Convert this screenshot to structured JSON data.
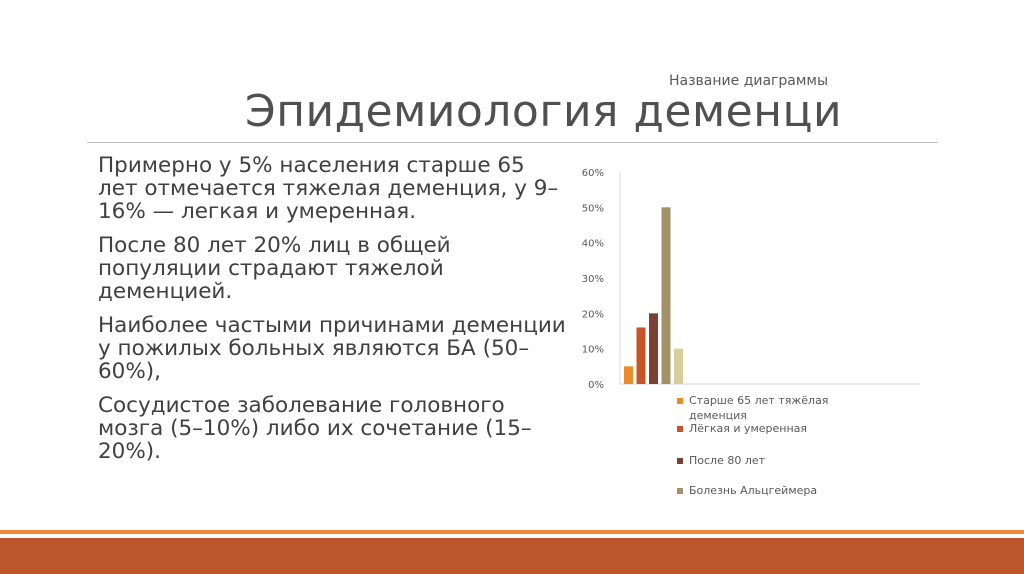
{
  "slide": {
    "title": "Эпидемиология деменци",
    "paragraphs": [
      "Примерно у 5% населения старше 65 лет отмечается тяжелая деменция, у 9–16% — легкая и умеренная.",
      "После 80 лет 20% лиц в общей популяции страдают тяжелой деменцией.",
      "Наиболее частыми причинами деменции у пожилых больных являются БА (50–60%),",
      "Сосудистое заболевание головного мозга (5–10%) либо их сочетание (15–20%)."
    ]
  },
  "chart_data": {
    "type": "bar",
    "title": "Название диаграммы",
    "y_ticks": [
      "0%",
      "10%",
      "20%",
      "30%",
      "40%",
      "50%",
      "60%"
    ],
    "ylim": [
      0,
      60
    ],
    "series": [
      {
        "name": "Старше 65 лет тяжёлая деменция",
        "value": 5,
        "color": "#ea8b2c"
      },
      {
        "name": "Лёгкая и умеренная",
        "value": 16,
        "color": "#c8552a"
      },
      {
        "name": "После 80 лет",
        "value": 20,
        "color": "#7b3f34"
      },
      {
        "name": "Болезнь Альцгеймера",
        "value": 50,
        "color": "#a39167"
      },
      {
        "name": "",
        "value": 10,
        "color": "#d5cf9f"
      }
    ],
    "legend_position": "bottom-right",
    "grid": false
  },
  "theme": {
    "footer_color": "#bd552b",
    "footer_line_color": "#e98a37"
  }
}
